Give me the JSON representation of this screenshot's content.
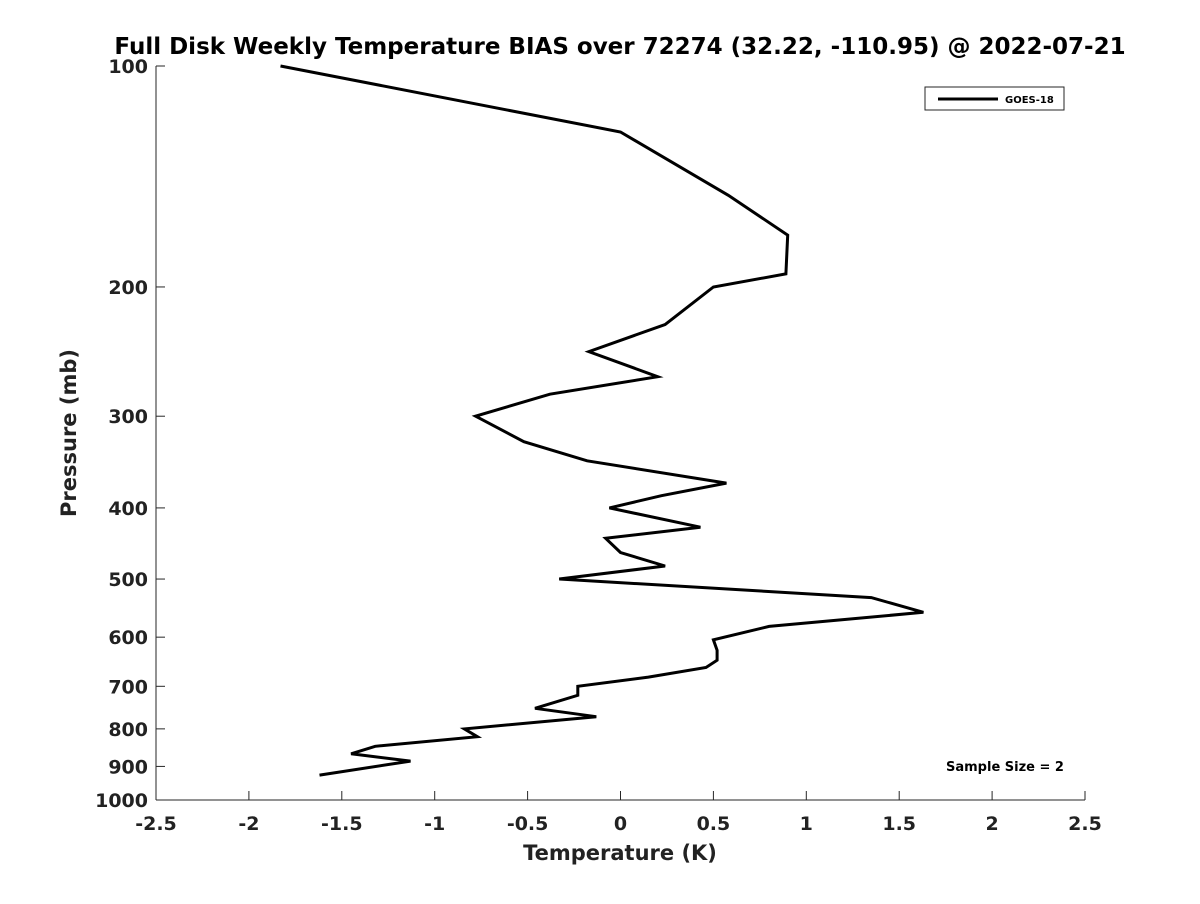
{
  "chart_data": {
    "type": "line",
    "title": "Full Disk Weekly Temperature BIAS over 72274 (32.22, -110.95) @ 2022-07-21",
    "xlabel": "Temperature (K)",
    "ylabel": "Pressure (mb)",
    "xlim": [
      -2.5,
      2.5
    ],
    "ylim": [
      100,
      1000
    ],
    "y_scale": "log",
    "y_direction": "reversed",
    "x_ticks": [
      "-2.5",
      "-2",
      "-1.5",
      "-1",
      "-0.5",
      "0",
      "0.5",
      "1",
      "1.5",
      "2",
      "2.5"
    ],
    "y_ticks": [
      "100",
      "200",
      "300",
      "400",
      "500",
      "600",
      "700",
      "800",
      "900",
      "1000"
    ],
    "grid": false,
    "legend": {
      "position": "top-right",
      "entries": [
        "GOES-18"
      ]
    },
    "annotation": "Sample Size = 2",
    "line_color": "#000000",
    "series": [
      {
        "name": "GOES-18",
        "x": [
          -1.83,
          0.0,
          0.58,
          0.9,
          0.89,
          0.5,
          0.24,
          -0.17,
          0.2,
          -0.38,
          -0.78,
          -0.52,
          -0.18,
          0.57,
          0.22,
          -0.06,
          0.43,
          -0.08,
          0.0,
          0.24,
          -0.33,
          1.35,
          1.63,
          0.8,
          0.5,
          0.52,
          0.52,
          0.46,
          0.15,
          -0.23,
          -0.23,
          -0.46,
          -0.13,
          -0.84,
          -0.77,
          -1.32,
          -1.45,
          -1.13,
          -1.62
        ],
        "y": [
          100,
          123,
          150,
          170,
          192,
          200,
          225,
          245,
          265,
          280,
          300,
          325,
          345,
          370,
          385,
          400,
          425,
          440,
          460,
          480,
          500,
          530,
          555,
          580,
          605,
          625,
          645,
          660,
          680,
          700,
          720,
          750,
          770,
          800,
          820,
          845,
          865,
          885,
          925
        ]
      }
    ]
  }
}
